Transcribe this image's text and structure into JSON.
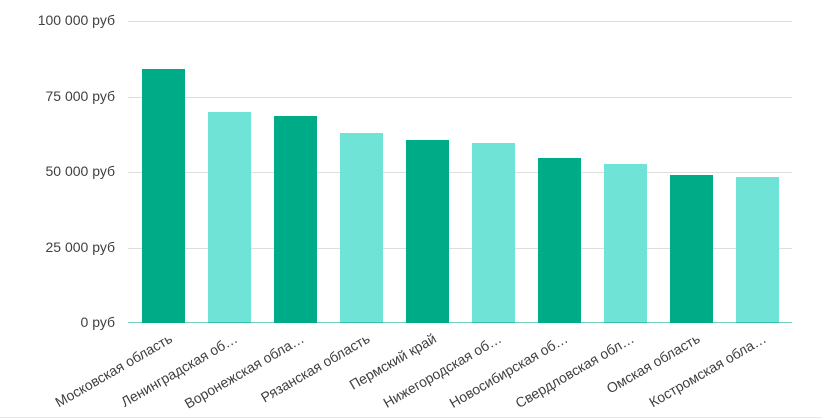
{
  "chart_data": {
    "type": "bar",
    "categories": [
      "Московская область",
      "Ленинградская об…",
      "Воронежская обла…",
      "Рязанская область",
      "Пермский край",
      "Нижегородская об…",
      "Новосибирская об…",
      "Свердловская обл…",
      "Омская область",
      "Костромская обла…"
    ],
    "values": [
      84000,
      70000,
      68500,
      63000,
      60500,
      59500,
      54500,
      52500,
      49000,
      48500
    ],
    "bar_colors": [
      "#00AB87",
      "#6FE3D6",
      "#00AB87",
      "#6FE3D6",
      "#00AB87",
      "#6FE3D6",
      "#00AB87",
      "#6FE3D6",
      "#00AB87",
      "#6FE3D6"
    ],
    "xlabel": "",
    "ylabel": "",
    "ylim": [
      0,
      100000
    ],
    "y_ticks": [
      {
        "value": 100000,
        "label": "100 000 руб"
      },
      {
        "value": 75000,
        "label": "75 000 руб"
      },
      {
        "value": 50000,
        "label": "50 000 руб"
      },
      {
        "value": 25000,
        "label": "25 000 руб"
      },
      {
        "value": 0,
        "label": "0 руб"
      }
    ],
    "legend": "none",
    "grid": "horizontal",
    "x_label_rotation_deg": -30
  },
  "colors": {
    "bar_dark": "#00AB87",
    "bar_light": "#6FE3D6",
    "gridline": "#dedede",
    "axis_baseline": "rgba(0,171,135,0.55)",
    "label_text": "#404040",
    "bottom_divider": "#e8e8e8"
  }
}
